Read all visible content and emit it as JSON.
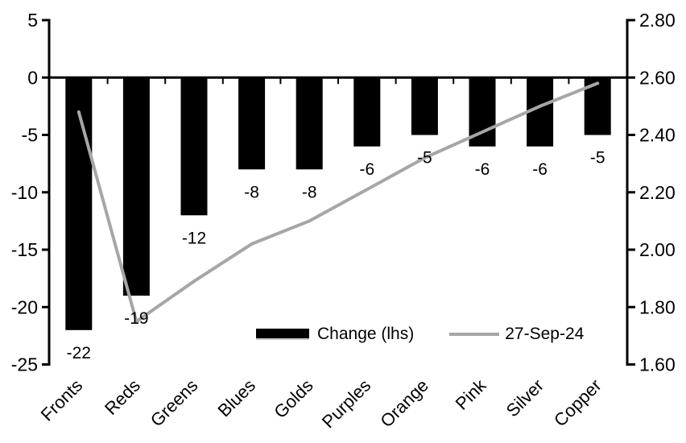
{
  "chart_data": {
    "type": "bar",
    "subtype": "combo-bar-line-dual-axis",
    "title": "",
    "categories": [
      "Fronts",
      "Reds",
      "Greens",
      "Blues",
      "Golds",
      "Purples",
      "Orange",
      "Pink",
      "Silver",
      "Copper"
    ],
    "series": [
      {
        "name": "Change (lhs)",
        "type": "bar",
        "axis": "left",
        "color": "#000000",
        "values": [
          -22,
          -19,
          -12,
          -8,
          -8,
          -6,
          -5,
          -6,
          -6,
          -5
        ],
        "data_labels": [
          "-22",
          "-19",
          "-12",
          "-8",
          "-8",
          "-6",
          "-5",
          "-6",
          "-6",
          "-5"
        ]
      },
      {
        "name": "27-Sep-24",
        "type": "line",
        "axis": "right",
        "color": "#a6a6a6",
        "values": [
          2.48,
          1.75,
          1.89,
          2.02,
          2.1,
          2.21,
          2.32,
          2.41,
          2.5,
          2.58
        ]
      }
    ],
    "left_axis": {
      "min": -25,
      "max": 5,
      "tick_step": 5,
      "tick_labels": [
        "5",
        "0",
        "-5",
        "-10",
        "-15",
        "-20",
        "-25"
      ]
    },
    "right_axis": {
      "min": 1.6,
      "max": 2.8,
      "tick_step": 0.2,
      "tick_labels": [
        "2.80",
        "2.60",
        "2.40",
        "2.20",
        "2.00",
        "1.80",
        "1.60"
      ]
    },
    "legend": [
      {
        "label": "Change (lhs)",
        "marker": "bar",
        "color": "#000000"
      },
      {
        "label": "27-Sep-24",
        "marker": "line",
        "color": "#a6a6a6"
      }
    ],
    "layout": {
      "grid": false,
      "legend_position": "inside-bottom",
      "category_label_rotation": 45,
      "background": "#ffffff",
      "axis_color": "#000000"
    }
  }
}
